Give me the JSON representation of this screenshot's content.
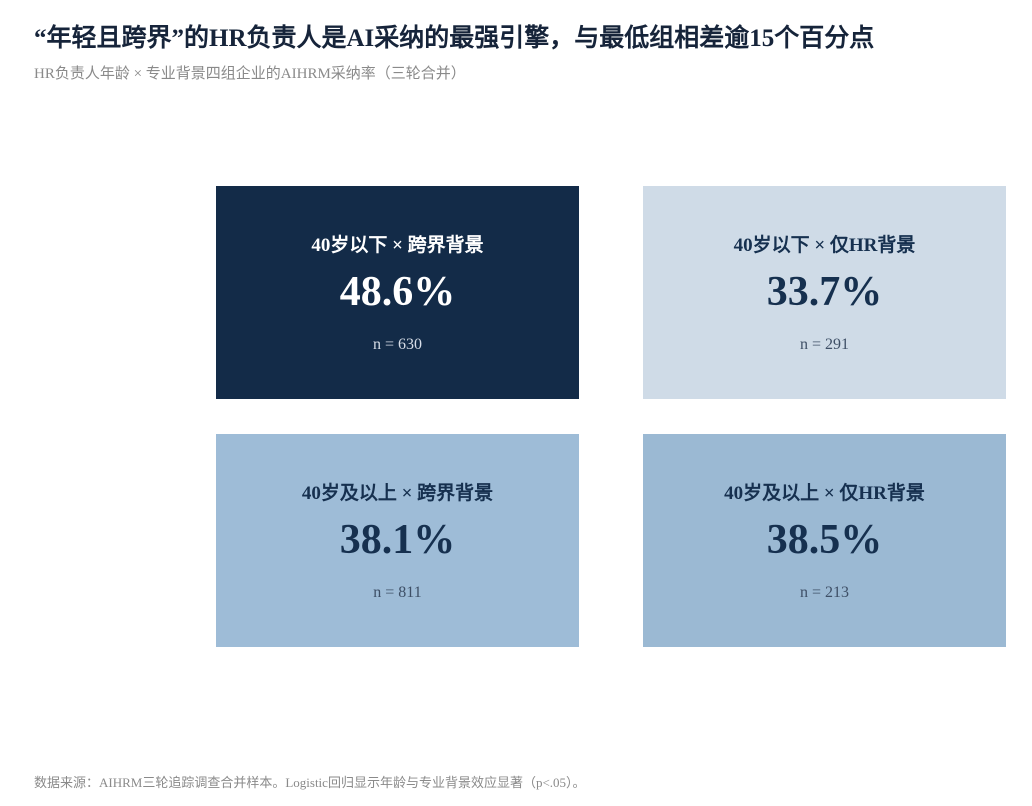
{
  "header": {
    "title": "“年轻且跨界”的HR负责人是AI采纳的最强引擎，与最低组相差逾15个百分点",
    "subtitle": "HR负责人年龄 × 专业背景四组企业的AIHRM采纳率（三轮合并）"
  },
  "cards": [
    {
      "label": "40岁以下 × 跨界背景",
      "value": "48.6%",
      "n": "n = 630"
    },
    {
      "label": "40岁以下 × 仅HR背景",
      "value": "33.7%",
      "n": "n = 291"
    },
    {
      "label": "40岁及以上 × 跨界背景",
      "value": "38.1%",
      "n": "n = 811"
    },
    {
      "label": "40岁及以上 × 仅HR背景",
      "value": "38.5%",
      "n": "n = 213"
    }
  ],
  "footer": "数据来源：AIHRM三轮追踪调查合并样本。Logistic回归显示年龄与专业背景效应显著（p<.05）。"
}
